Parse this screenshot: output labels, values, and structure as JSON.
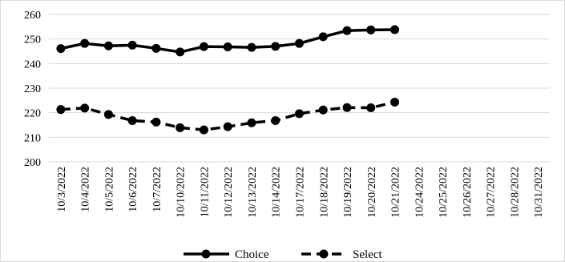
{
  "chart_data": {
    "type": "line",
    "title": "",
    "xlabel": "",
    "ylabel": "",
    "categories": [
      "10/3/2022",
      "10/4/2022",
      "10/5/2022",
      "10/6/2022",
      "10/7/2022",
      "10/10/2022",
      "10/11/2022",
      "10/12/2022",
      "10/13/2022",
      "10/14/2022",
      "10/17/2022",
      "10/18/2022",
      "10/19/2022",
      "10/20/2022",
      "10/21/2022",
      "10/24/2022",
      "10/25/2022",
      "10/26/2022",
      "10/27/2022",
      "10/28/2022",
      "10/31/2022"
    ],
    "ylim": [
      200,
      260
    ],
    "yticks": [
      200,
      210,
      220,
      230,
      240,
      250,
      260
    ],
    "grid": true,
    "legend": "bottom",
    "series": [
      {
        "name": "Choice",
        "style": "solid",
        "color": "#000000",
        "values": [
          246.1,
          248.2,
          247.2,
          247.5,
          246.2,
          244.7,
          246.9,
          246.8,
          246.6,
          247.0,
          248.2,
          250.9,
          253.4,
          253.7,
          253.8,
          null,
          null,
          null,
          null,
          null,
          null
        ]
      },
      {
        "name": "Select",
        "style": "dashed",
        "color": "#000000",
        "values": [
          221.3,
          221.9,
          219.3,
          216.8,
          216.2,
          213.9,
          213.0,
          214.3,
          215.9,
          216.8,
          219.6,
          221.1,
          222.1,
          222.0,
          224.3,
          null,
          null,
          null,
          null,
          null,
          null
        ]
      }
    ]
  }
}
